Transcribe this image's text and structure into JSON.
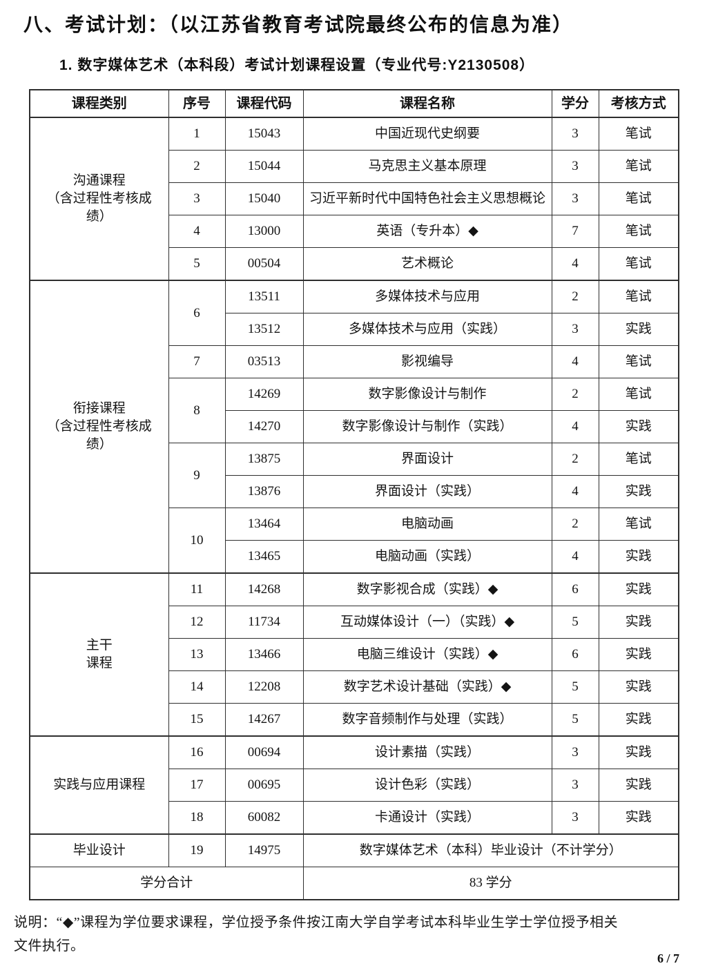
{
  "page": {
    "title": "八、考试计划：（以江苏省教育考试院最终公布的信息为准）",
    "subtitle": "1. 数字媒体艺术（本科段）考试计划课程设置（专业代号:Y2130508）",
    "note": "说明：“◆”课程为学位要求课程，学位授予条件按江南大学自学考试本科毕业生学士学位授予相关\n文件执行。",
    "page_number": "6 / 7"
  },
  "table": {
    "headers": [
      "课程类别",
      "序号",
      "课程代码",
      "课程名称",
      "学分",
      "考核方式"
    ],
    "groups": [
      {
        "category": "沟通课程\n（含过程性考核成\n绩）",
        "rows": [
          {
            "no": "1",
            "items": [
              {
                "code": "15043",
                "name": "中国近现代史纲要",
                "credit": "3",
                "method": "笔试"
              }
            ]
          },
          {
            "no": "2",
            "items": [
              {
                "code": "15044",
                "name": "马克思主义基本原理",
                "credit": "3",
                "method": "笔试"
              }
            ]
          },
          {
            "no": "3",
            "items": [
              {
                "code": "15040",
                "name": "习近平新时代中国特色社会主义思想概论",
                "credit": "3",
                "method": "笔试"
              }
            ]
          },
          {
            "no": "4",
            "items": [
              {
                "code": "13000",
                "name": "英语（专升本）◆",
                "credit": "7",
                "method": "笔试"
              }
            ]
          },
          {
            "no": "5",
            "items": [
              {
                "code": "00504",
                "name": "艺术概论",
                "credit": "4",
                "method": "笔试"
              }
            ]
          }
        ]
      },
      {
        "category": "衔接课程\n（含过程性考核成\n绩）",
        "rows": [
          {
            "no": "6",
            "items": [
              {
                "code": "13511",
                "name": "多媒体技术与应用",
                "credit": "2",
                "method": "笔试"
              },
              {
                "code": "13512",
                "name": "多媒体技术与应用（实践）",
                "credit": "3",
                "method": "实践"
              }
            ]
          },
          {
            "no": "7",
            "items": [
              {
                "code": "03513",
                "name": "影视编导",
                "credit": "4",
                "method": "笔试"
              }
            ]
          },
          {
            "no": "8",
            "items": [
              {
                "code": "14269",
                "name": "数字影像设计与制作",
                "credit": "2",
                "method": "笔试"
              },
              {
                "code": "14270",
                "name": "数字影像设计与制作（实践）",
                "credit": "4",
                "method": "实践"
              }
            ]
          },
          {
            "no": "9",
            "items": [
              {
                "code": "13875",
                "name": "界面设计",
                "credit": "2",
                "method": "笔试"
              },
              {
                "code": "13876",
                "name": "界面设计（实践）",
                "credit": "4",
                "method": "实践"
              }
            ]
          },
          {
            "no": "10",
            "items": [
              {
                "code": "13464",
                "name": "电脑动画",
                "credit": "2",
                "method": "笔试"
              },
              {
                "code": "13465",
                "name": "电脑动画（实践）",
                "credit": "4",
                "method": "实践"
              }
            ]
          }
        ]
      },
      {
        "category": "主干\n课程",
        "rows": [
          {
            "no": "11",
            "items": [
              {
                "code": "14268",
                "name": "数字影视合成（实践）◆",
                "credit": "6",
                "method": "实践"
              }
            ]
          },
          {
            "no": "12",
            "items": [
              {
                "code": "11734",
                "name": "互动媒体设计（一）（实践）◆",
                "credit": "5",
                "method": "实践"
              }
            ]
          },
          {
            "no": "13",
            "items": [
              {
                "code": "13466",
                "name": "电脑三维设计（实践）◆",
                "credit": "6",
                "method": "实践"
              }
            ]
          },
          {
            "no": "14",
            "items": [
              {
                "code": "12208",
                "name": "数字艺术设计基础（实践）◆",
                "credit": "5",
                "method": "实践"
              }
            ]
          },
          {
            "no": "15",
            "items": [
              {
                "code": "14267",
                "name": "数字音频制作与处理（实践）",
                "credit": "5",
                "method": "实践"
              }
            ]
          }
        ]
      },
      {
        "category": "实践与应用课程",
        "rows": [
          {
            "no": "16",
            "items": [
              {
                "code": "00694",
                "name": "设计素描（实践）",
                "credit": "3",
                "method": "实践"
              }
            ]
          },
          {
            "no": "17",
            "items": [
              {
                "code": "00695",
                "name": "设计色彩（实践）",
                "credit": "3",
                "method": "实践"
              }
            ]
          },
          {
            "no": "18",
            "items": [
              {
                "code": "60082",
                "name": "卡通设计（实践）",
                "credit": "3",
                "method": "实践"
              }
            ]
          }
        ]
      },
      {
        "category": "毕业设计",
        "rows": [
          {
            "no": "19",
            "items": [
              {
                "code": "14975",
                "name": "数字媒体艺术（本科）毕业设计（不计学分）",
                "span": 3
              }
            ]
          }
        ]
      }
    ],
    "total_row": {
      "label": "学分合计",
      "value": "83 学分"
    }
  }
}
